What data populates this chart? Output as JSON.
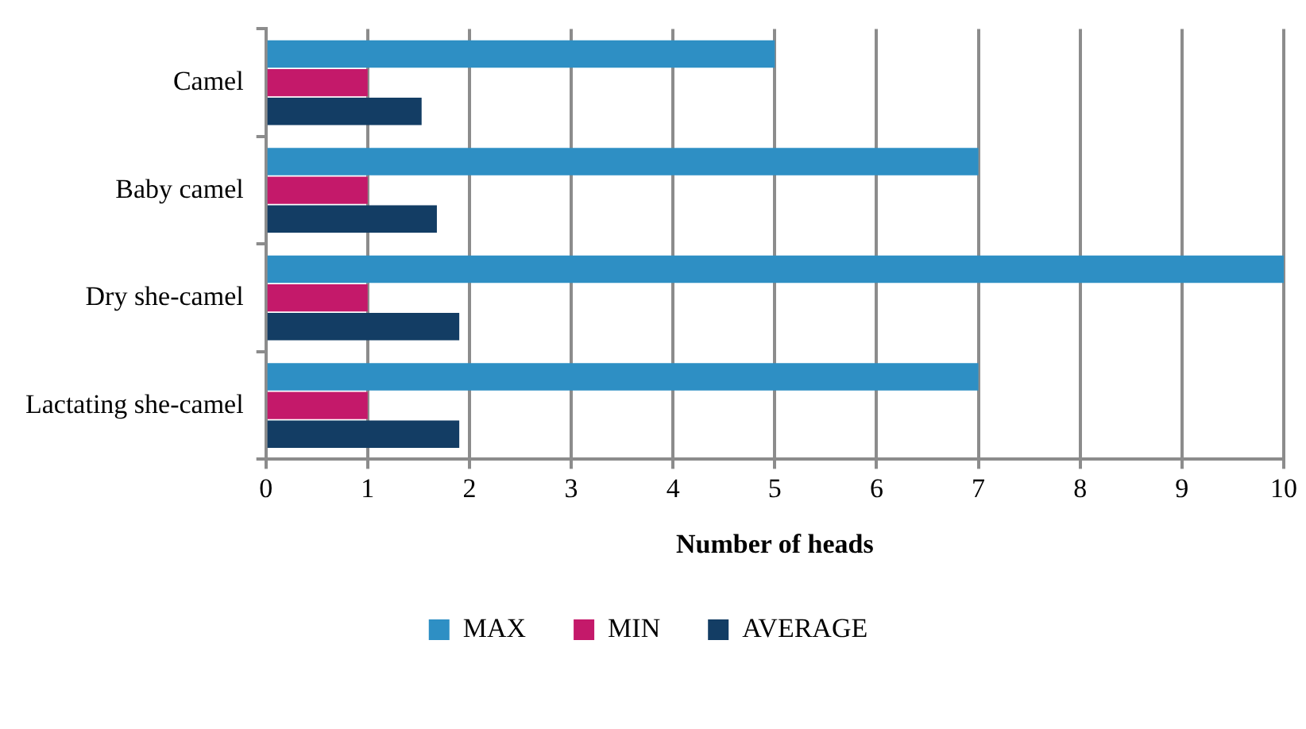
{
  "chart_data": {
    "type": "bar",
    "orientation": "horizontal",
    "xlabel": "Number of heads",
    "categories": [
      "Camel",
      "Baby camel",
      "Dry she-camel",
      "Lactating she-camel"
    ],
    "series": [
      {
        "name": "MAX",
        "color": "#2e8fc4",
        "values": [
          5,
          7,
          10,
          7
        ]
      },
      {
        "name": "MIN",
        "color": "#c4196a",
        "values": [
          1,
          1,
          1,
          1
        ]
      },
      {
        "name": "AVERAGE",
        "color": "#133d64",
        "values": [
          1.53,
          1.68,
          1.9,
          1.9
        ]
      }
    ],
    "xlim": [
      0,
      10
    ],
    "xticks": [
      0,
      1,
      2,
      3,
      4,
      5,
      6,
      7,
      8,
      9,
      10
    ],
    "grid": "x",
    "legend": "bottom"
  }
}
